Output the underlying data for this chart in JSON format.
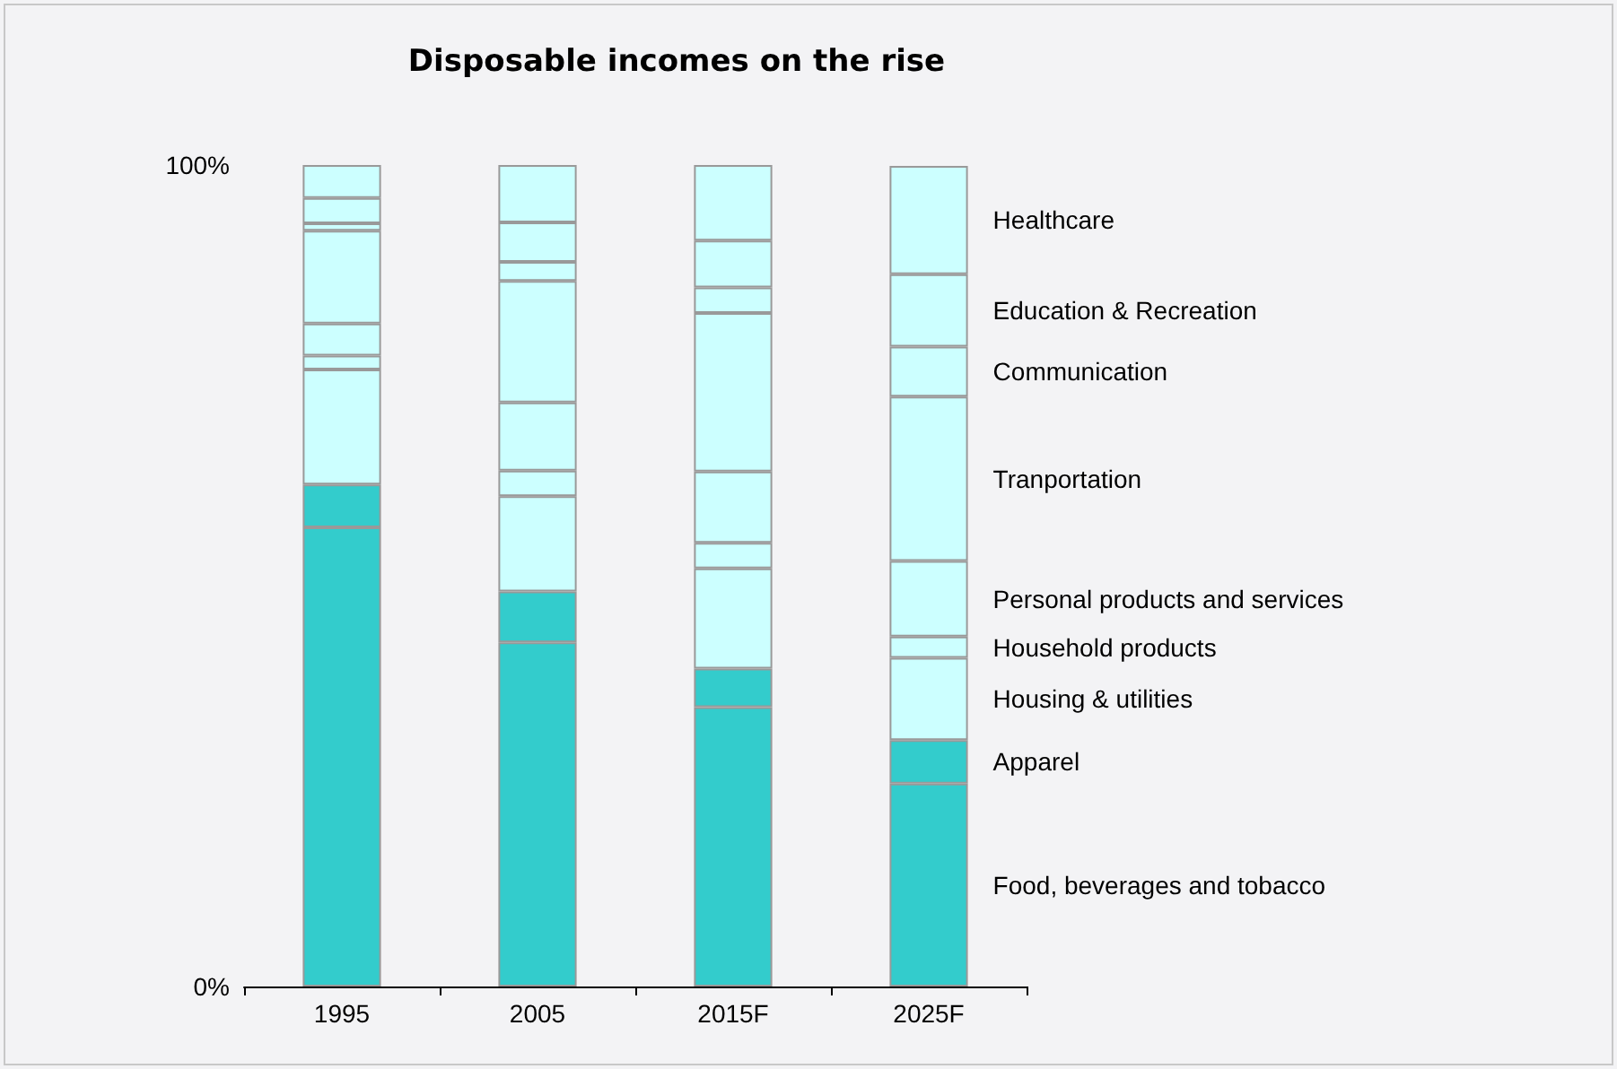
{
  "chart_data": {
    "type": "bar",
    "title": "Disposable incomes on the rise",
    "categories": [
      "1995",
      "2005",
      "2015F",
      "2025F"
    ],
    "stacked": true,
    "series": [
      {
        "name": "Food, beverages and tobacco",
        "color": "#33cccc",
        "values": [
          55.9,
          41.9,
          34.0,
          24.7
        ]
      },
      {
        "name": "Apparel",
        "color": "#33cccc",
        "values": [
          5.2,
          6.2,
          4.7,
          5.3
        ]
      },
      {
        "name": "Housing & utilities",
        "color": "#ccffff",
        "values": [
          14.0,
          11.6,
          12.2,
          10.0
        ]
      },
      {
        "name": "Household products",
        "color": "#ccffff",
        "values": [
          1.7,
          3.1,
          3.1,
          2.6
        ]
      },
      {
        "name": "Personal products and services",
        "color": "#ccffff",
        "values": [
          3.9,
          8.3,
          8.7,
          9.2
        ]
      },
      {
        "name": "Tranportation",
        "color": "#ccffff",
        "values": [
          11.3,
          14.8,
          19.3,
          20.0
        ]
      },
      {
        "name": "Communication",
        "color": "#ccffff",
        "values": [
          0.9,
          2.3,
          3.1,
          6.1
        ]
      },
      {
        "name": "Education & Recreation",
        "color": "#ccffff",
        "values": [
          3.1,
          4.8,
          5.7,
          8.8
        ]
      },
      {
        "name": "Healthcare",
        "color": "#ccffff",
        "values": [
          4.0,
          7.0,
          9.2,
          13.2
        ]
      }
    ],
    "ylim": [
      0,
      100
    ],
    "yticks": [
      {
        "value": 0,
        "label": "0%"
      },
      {
        "value": 100,
        "label": "100%"
      }
    ],
    "grid": false,
    "legend": false
  }
}
